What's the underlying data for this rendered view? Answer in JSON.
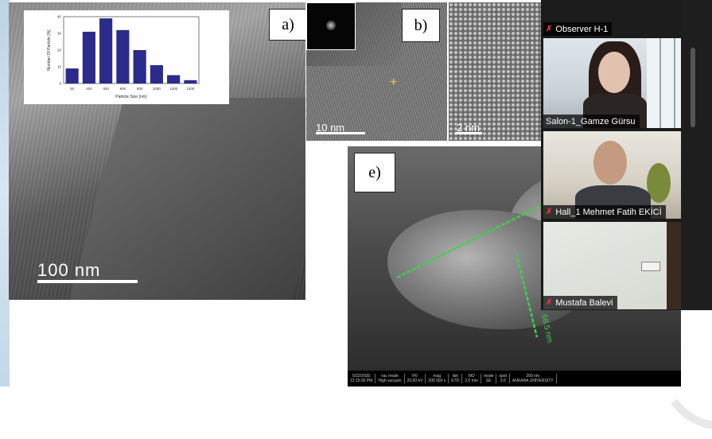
{
  "slide": {
    "panels": {
      "a": {
        "label": "a)",
        "scale_text": "100 nm",
        "histogram": {
          "ylabel": "Number Of Particle [%]",
          "xlabel": "Particle Size (nm)",
          "yticks": [
            "0",
            "10",
            "20",
            "30",
            "40"
          ],
          "categories": [
            "50",
            "200",
            "400",
            "600",
            "800",
            "1000",
            "1200",
            "1400"
          ],
          "values": [
            9,
            31,
            39,
            32,
            20,
            11,
            5,
            2
          ],
          "ylim": [
            0,
            40
          ],
          "bar_color": "#2b2b8c"
        }
      },
      "b": {
        "label": "b)",
        "scale_text": "10 nm",
        "scale_text_2": "2 nm"
      },
      "e": {
        "label": "e)",
        "measure_text": "68.5 nm",
        "sem_info": [
          "5/22/2020\n12:15:26 PM",
          "vac mode\nHigh vacuum",
          "HV\n20.00 kV",
          "mag\n200 000 x",
          "det\nETD",
          "WD\n3.5 mm",
          "mode\nSE",
          "spot\n3.0",
          "200 nm\nANKARA UNIVERSITY"
        ]
      }
    }
  },
  "participants": [
    {
      "name": "Observer H-1",
      "muted": true
    },
    {
      "name": "Salon-1_Gamze Gürsu",
      "muted": false
    },
    {
      "name": "Hall_1 Mehmet Fatih EKİCİ",
      "muted": true
    },
    {
      "name": "Mustafa Balevi",
      "muted": true
    }
  ],
  "colors": {
    "mute_icon": "#e03b3b",
    "measure_line": "#3fd14a",
    "marker": "#e6d23a"
  }
}
